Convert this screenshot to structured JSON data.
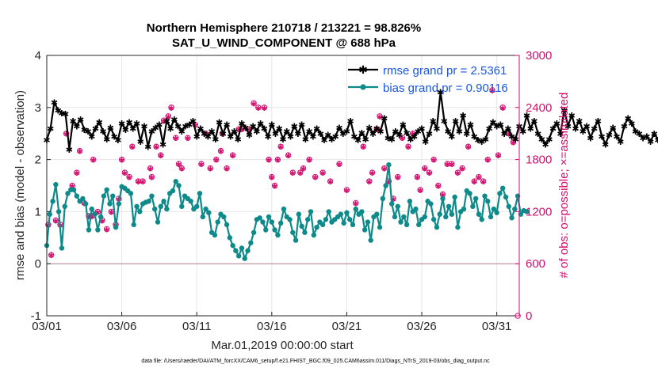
{
  "colors": {
    "rmse": "#000000",
    "bias": "#0f8a8a",
    "obs": "#d40e6f",
    "legend_text": "#1a56e0",
    "zero_line": "#c8a8b0",
    "grid": "#e6e6e6"
  },
  "chart_data": {
    "type": "line",
    "title": "Northern Hemisphere 210718 / 213221 = 98.826%",
    "subtitle": "SAT_U_WIND_COMPONENT @ 688 hPa",
    "xlabel": "Mar.01,2019 00:00:00 start",
    "ylabel_left": "rmse and bias (model - observation)",
    "ylabel_right": "# of obs: o=possible; ×=assimilated",
    "xlim": [
      0,
      31.5
    ],
    "ylim_left": [
      -1,
      4
    ],
    "ylim_right": [
      0,
      3000
    ],
    "x_ticks": [
      0,
      5,
      10,
      15,
      20,
      25,
      30
    ],
    "x_tick_labels": [
      "03/01",
      "03/06",
      "03/11",
      "03/16",
      "03/21",
      "03/26",
      "03/31"
    ],
    "y_ticks_left": [
      "-1",
      "0",
      "1",
      "2",
      "3",
      "4"
    ],
    "y_ticks_right": [
      "0",
      "600",
      "1200",
      "1800",
      "2400",
      "3000"
    ],
    "legend_position": "top-right",
    "footnote": "data file: /Users/raeder/DAI/ATM_forcXX/CAM6_setup/f.e21.FHIST_BGC.f09_025.CAM6assim.011/Diags_NTrS_2019-03/obs_diag_output.nc",
    "series": [
      {
        "name": "rmse",
        "label": "rmse grand pr = 2.5361",
        "axis": "left",
        "values": [
          2.38,
          2.6,
          3.1,
          2.95,
          2.9,
          2.88,
          2.2,
          2.75,
          2.65,
          2.78,
          2.58,
          2.55,
          2.45,
          2.6,
          2.72,
          2.55,
          2.4,
          2.62,
          2.45,
          2.38,
          2.7,
          2.58,
          2.72,
          2.6,
          2.7,
          2.35,
          2.65,
          2.25,
          2.55,
          2.62,
          2.68,
          2.3,
          2.75,
          2.6,
          2.78,
          2.65,
          2.55,
          2.65,
          2.68,
          2.75,
          2.45,
          2.6,
          2.5,
          2.45,
          2.55,
          2.4,
          2.72,
          2.5,
          2.68,
          2.45,
          2.55,
          2.4,
          2.7,
          2.62,
          2.48,
          2.65,
          2.55,
          2.7,
          2.6,
          2.45,
          2.68,
          2.5,
          2.6,
          2.4,
          2.55,
          2.45,
          2.65,
          2.5,
          2.68,
          2.4,
          2.55,
          2.45,
          2.6,
          2.5,
          2.38,
          2.48,
          2.4,
          2.45,
          2.62,
          2.5,
          2.55,
          2.75,
          2.45,
          2.38,
          2.52,
          2.4,
          2.62,
          2.5,
          2.6,
          2.55,
          2.8,
          2.42,
          2.4,
          2.55,
          2.48,
          2.68,
          2.52,
          2.4,
          2.45,
          2.55,
          2.6,
          2.35,
          2.5,
          2.75,
          2.6,
          3.3,
          2.75,
          2.55,
          2.45,
          2.75,
          2.55,
          2.85,
          2.5,
          2.68,
          2.45,
          2.38,
          2.35,
          2.4,
          2.6,
          2.72,
          2.65,
          2.68,
          2.5,
          2.6,
          2.45,
          2.4,
          2.65,
          2.55,
          2.85,
          2.6,
          2.75,
          2.5,
          2.4,
          2.3,
          2.4,
          2.6,
          2.7,
          2.5,
          2.95,
          2.65,
          2.85,
          2.6,
          2.75,
          2.55,
          2.65,
          2.42,
          2.6,
          2.75,
          2.45,
          2.3,
          2.48,
          2.62,
          2.45,
          2.35,
          2.65,
          2.8,
          2.7,
          2.55,
          2.5,
          2.42,
          2.45,
          2.35,
          2.5,
          2.38,
          2.1
        ],
        "start_day": 0,
        "step_days": 0.25
      },
      {
        "name": "bias",
        "label": "bias grand pr = 0.90116",
        "axis": "left",
        "values": [
          0.35,
          0.95,
          1.2,
          1.52,
          1.0,
          0.3,
          1.1,
          1.35,
          1.42,
          1.42,
          1.3,
          1.2,
          1.25,
          1.15,
          0.65,
          1.05,
          0.95,
          0.65,
          0.9,
          1.3,
          1.42,
          1.15,
          1.3,
          0.7,
          1.15,
          1.48,
          1.45,
          1.4,
          1.35,
          0.75,
          1.1,
          1.0,
          1.15,
          1.18,
          1.2,
          1.3,
          1.05,
          0.8,
          1.1,
          1.2,
          1.05,
          1.35,
          1.4,
          1.58,
          1.5,
          1.1,
          1.3,
          1.25,
          1.2,
          1.05,
          1.1,
          1.35,
          0.9,
          1.05,
          0.98,
          0.6,
          0.55,
          0.8,
          0.95,
          0.9,
          0.75,
          0.5,
          0.35,
          0.25,
          0.15,
          0.3,
          0.1,
          0.25,
          0.4,
          0.6,
          0.85,
          0.88,
          0.8,
          0.65,
          0.9,
          0.8,
          0.65,
          0.55,
          0.78,
          1.05,
          0.9,
          0.85,
          0.6,
          0.45,
          0.95,
          0.72,
          0.6,
          0.85,
          1.0,
          0.55,
          0.7,
          0.8,
          0.75,
          0.85,
          1.0,
          0.8,
          0.85,
          0.9,
          0.95,
          0.78,
          0.98,
          0.85,
          0.75,
          1.05,
          0.95,
          1.0,
          0.65,
          0.8,
          0.45,
          0.9,
          0.95,
          0.7,
          1.25,
          1.5,
          1.9,
          1.15,
          0.9,
          1.1,
          0.8,
          0.9,
          0.75,
          1.2,
          1.0,
          1.05,
          0.75,
          0.85,
          0.9,
          1.2,
          1.15,
          0.85,
          0.7,
          0.95,
          1.25,
          0.9,
          1.1,
          0.95,
          1.28,
          0.7,
          1.0,
          1.05,
          1.4,
          1.35,
          1.1,
          1.25,
          0.95,
          0.85,
          1.3,
          1.2,
          0.9,
          1.05,
          0.98,
          1.35,
          1.45,
          1.28,
          1.1,
          0.88,
          1.05,
          1.3,
          0.95,
          1.02,
          1.0
        ],
        "start_day": 0,
        "step_days": 0.2
      },
      {
        "name": "obs_possible",
        "label": "possible",
        "axis": "right",
        "points": [
          [
            0.1,
            1050
          ],
          [
            0.3,
            700
          ],
          [
            0.6,
            1100
          ],
          [
            0.9,
            1050
          ],
          [
            1.3,
            2100
          ],
          [
            1.7,
            1500
          ],
          [
            2.0,
            1650
          ],
          [
            2.2,
            1900
          ],
          [
            2.5,
            1300
          ],
          [
            2.8,
            1150
          ],
          [
            3.0,
            1150
          ],
          [
            3.1,
            1800
          ],
          [
            3.4,
            1200
          ],
          [
            3.7,
            1100
          ],
          [
            4.0,
            1000
          ],
          [
            4.3,
            1200
          ],
          [
            4.6,
            1050
          ],
          [
            4.8,
            1350
          ],
          [
            5.0,
            1800
          ],
          [
            5.2,
            1650
          ],
          [
            5.5,
            1600
          ],
          [
            5.7,
            1950
          ],
          [
            6.1,
            1550
          ],
          [
            6.4,
            1550
          ],
          [
            6.9,
            1700
          ],
          [
            7.0,
            1600
          ],
          [
            7.3,
            1950
          ],
          [
            7.6,
            1850
          ],
          [
            7.8,
            2250
          ],
          [
            8.1,
            2300
          ],
          [
            8.3,
            2400
          ],
          [
            8.6,
            2050
          ],
          [
            8.8,
            1750
          ],
          [
            9.0,
            1700
          ],
          [
            9.4,
            2050
          ],
          [
            9.9,
            2200
          ],
          [
            10.3,
            1750
          ],
          [
            10.6,
            2100
          ],
          [
            10.9,
            1700
          ],
          [
            11.3,
            1800
          ],
          [
            11.6,
            1900
          ],
          [
            11.7,
            2100
          ],
          [
            12.0,
            1700
          ],
          [
            12.4,
            1850
          ],
          [
            12.8,
            2150
          ],
          [
            13.0,
            2150
          ],
          [
            13.5,
            2150
          ],
          [
            13.8,
            2450
          ],
          [
            14.1,
            2400
          ],
          [
            14.5,
            2400
          ],
          [
            14.8,
            1800
          ],
          [
            15.0,
            1600
          ],
          [
            15.2,
            1500
          ],
          [
            15.4,
            1800
          ],
          [
            15.6,
            1950
          ],
          [
            16.1,
            1850
          ],
          [
            16.4,
            1650
          ],
          [
            16.9,
            1650
          ],
          [
            17.1,
            1700
          ],
          [
            17.5,
            1800
          ],
          [
            17.9,
            1600
          ],
          [
            18.4,
            1650
          ],
          [
            18.9,
            1550
          ],
          [
            19.5,
            1750
          ],
          [
            20.0,
            1450
          ],
          [
            20.6,
            1300
          ],
          [
            21.1,
            1950
          ],
          [
            21.5,
            1550
          ],
          [
            21.7,
            1650
          ],
          [
            22.0,
            2150
          ],
          [
            22.2,
            2300
          ],
          [
            22.5,
            1700
          ],
          [
            22.8,
            1550
          ],
          [
            23.1,
            1350
          ],
          [
            23.4,
            1600
          ],
          [
            23.7,
            2050
          ],
          [
            24.1,
            1950
          ],
          [
            24.4,
            2100
          ],
          [
            24.7,
            1600
          ],
          [
            24.9,
            1450
          ],
          [
            25.2,
            1700
          ],
          [
            25.5,
            1650
          ],
          [
            25.8,
            1800
          ],
          [
            26.1,
            1500
          ],
          [
            26.4,
            1400
          ],
          [
            26.7,
            1750
          ],
          [
            27.0,
            1750
          ],
          [
            27.4,
            1650
          ],
          [
            27.7,
            1700
          ],
          [
            28.1,
            1950
          ],
          [
            28.5,
            1550
          ],
          [
            28.8,
            1600
          ],
          [
            29.1,
            1550
          ],
          [
            29.4,
            1800
          ],
          [
            29.7,
            2600
          ],
          [
            30.1,
            1850
          ],
          [
            30.4,
            2400
          ],
          [
            30.8,
            2100
          ],
          [
            31.1,
            2000
          ],
          [
            31.4,
            0
          ]
        ]
      },
      {
        "name": "obs_assimilated",
        "label": "assimilated",
        "axis": "right",
        "points": [
          [
            0.1,
            1050
          ],
          [
            0.3,
            700
          ],
          [
            0.6,
            1100
          ],
          [
            0.9,
            1050
          ],
          [
            1.3,
            2100
          ],
          [
            1.7,
            1500
          ],
          [
            2.0,
            1650
          ],
          [
            2.2,
            1900
          ],
          [
            2.5,
            1300
          ],
          [
            2.8,
            1150
          ],
          [
            3.0,
            1150
          ],
          [
            3.1,
            1800
          ],
          [
            3.4,
            1200
          ],
          [
            3.7,
            1100
          ],
          [
            4.0,
            1000
          ],
          [
            4.3,
            1200
          ],
          [
            4.6,
            1050
          ],
          [
            4.8,
            1350
          ],
          [
            5.0,
            1800
          ],
          [
            5.2,
            1650
          ],
          [
            5.5,
            1600
          ],
          [
            5.7,
            1950
          ],
          [
            6.1,
            1550
          ],
          [
            6.4,
            1550
          ],
          [
            6.9,
            1700
          ],
          [
            7.0,
            1600
          ],
          [
            7.3,
            1950
          ],
          [
            7.6,
            1850
          ],
          [
            7.8,
            2250
          ],
          [
            8.1,
            2300
          ],
          [
            8.3,
            2400
          ],
          [
            8.6,
            2050
          ],
          [
            8.8,
            1750
          ],
          [
            9.0,
            1700
          ],
          [
            9.4,
            2050
          ],
          [
            9.9,
            2200
          ],
          [
            10.3,
            1750
          ],
          [
            10.6,
            2100
          ],
          [
            10.9,
            1700
          ],
          [
            11.3,
            1800
          ],
          [
            11.6,
            1900
          ],
          [
            11.7,
            2100
          ],
          [
            12.0,
            1700
          ],
          [
            12.4,
            1850
          ],
          [
            12.8,
            2150
          ],
          [
            13.0,
            2150
          ],
          [
            13.5,
            2150
          ],
          [
            13.8,
            2450
          ],
          [
            14.1,
            2400
          ],
          [
            14.5,
            2400
          ],
          [
            14.8,
            1800
          ],
          [
            15.0,
            1600
          ],
          [
            15.2,
            1500
          ],
          [
            15.4,
            1800
          ],
          [
            15.6,
            1950
          ],
          [
            16.1,
            1850
          ],
          [
            16.4,
            1650
          ],
          [
            16.9,
            1650
          ],
          [
            17.1,
            1700
          ],
          [
            17.5,
            1800
          ],
          [
            17.9,
            1600
          ],
          [
            18.4,
            1650
          ],
          [
            18.9,
            1550
          ],
          [
            19.5,
            1750
          ],
          [
            20.0,
            1450
          ],
          [
            20.6,
            1300
          ],
          [
            21.1,
            1950
          ],
          [
            21.5,
            1550
          ],
          [
            21.7,
            1650
          ],
          [
            22.0,
            2150
          ],
          [
            22.2,
            2300
          ],
          [
            22.5,
            1700
          ],
          [
            22.8,
            1550
          ],
          [
            23.1,
            1350
          ],
          [
            23.4,
            1600
          ],
          [
            23.7,
            2050
          ],
          [
            24.1,
            1950
          ],
          [
            24.4,
            2100
          ],
          [
            24.7,
            1600
          ],
          [
            24.9,
            1450
          ],
          [
            25.2,
            1700
          ],
          [
            25.5,
            1650
          ],
          [
            25.8,
            1800
          ],
          [
            26.1,
            1500
          ],
          [
            26.4,
            1400
          ],
          [
            26.7,
            1750
          ],
          [
            27.0,
            1750
          ],
          [
            27.4,
            1650
          ],
          [
            27.7,
            1700
          ],
          [
            28.1,
            1950
          ],
          [
            28.5,
            1550
          ],
          [
            28.8,
            1600
          ],
          [
            29.1,
            1550
          ],
          [
            29.4,
            1800
          ],
          [
            29.7,
            2600
          ],
          [
            30.1,
            1850
          ],
          [
            30.4,
            2400
          ],
          [
            30.8,
            2100
          ],
          [
            31.1,
            2000
          ]
        ]
      }
    ]
  }
}
